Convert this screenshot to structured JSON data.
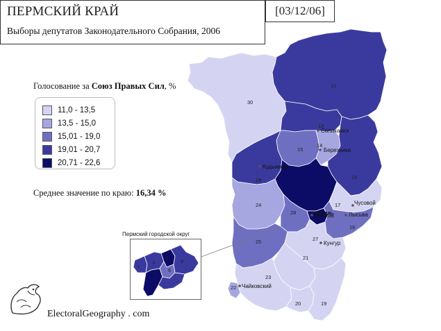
{
  "header": {
    "title": "ПЕРМСКИЙ КРАЙ",
    "subtitle": "Выборы депутатов Законодательного Собрания, 2006",
    "date": "[03/12/06]"
  },
  "legend": {
    "caption_prefix": "Голосование за ",
    "caption_party": "Союз Правых Сил",
    "caption_suffix": ", %",
    "classes": [
      {
        "label": "11,0 - 13,5",
        "color": "#d4d4f2"
      },
      {
        "label": "13,5 - 15,0",
        "color": "#a6a6e0"
      },
      {
        "label": "15,01 - 19,0",
        "color": "#6f6fc2"
      },
      {
        "label": "19,01 - 20,7",
        "color": "#3a3a9e"
      },
      {
        "label": "20,71 - 22,6",
        "color": "#0c0c66"
      }
    ]
  },
  "average": {
    "label": "Среднее значение по краю: ",
    "value": "16,34",
    "unit": " %"
  },
  "map": {
    "district_numbers": [
      "12",
      "30",
      "13",
      "14",
      "15",
      "16",
      "29",
      "24",
      "28",
      "17",
      "18",
      "25",
      "27",
      "21",
      "23",
      "22",
      "20",
      "19"
    ],
    "cities": [
      "Соликамск",
      "Березники",
      "Кудымкар",
      "Чусовой",
      "ПЕРМЬ",
      "Лысьва",
      "Кунгур",
      "Чайковский"
    ]
  },
  "inset": {
    "title": "Пермский городской округ",
    "district_numbers": [
      "1",
      "3",
      "5",
      "6",
      "8"
    ]
  },
  "footer": {
    "site": "ElectoralGeography . com"
  }
}
